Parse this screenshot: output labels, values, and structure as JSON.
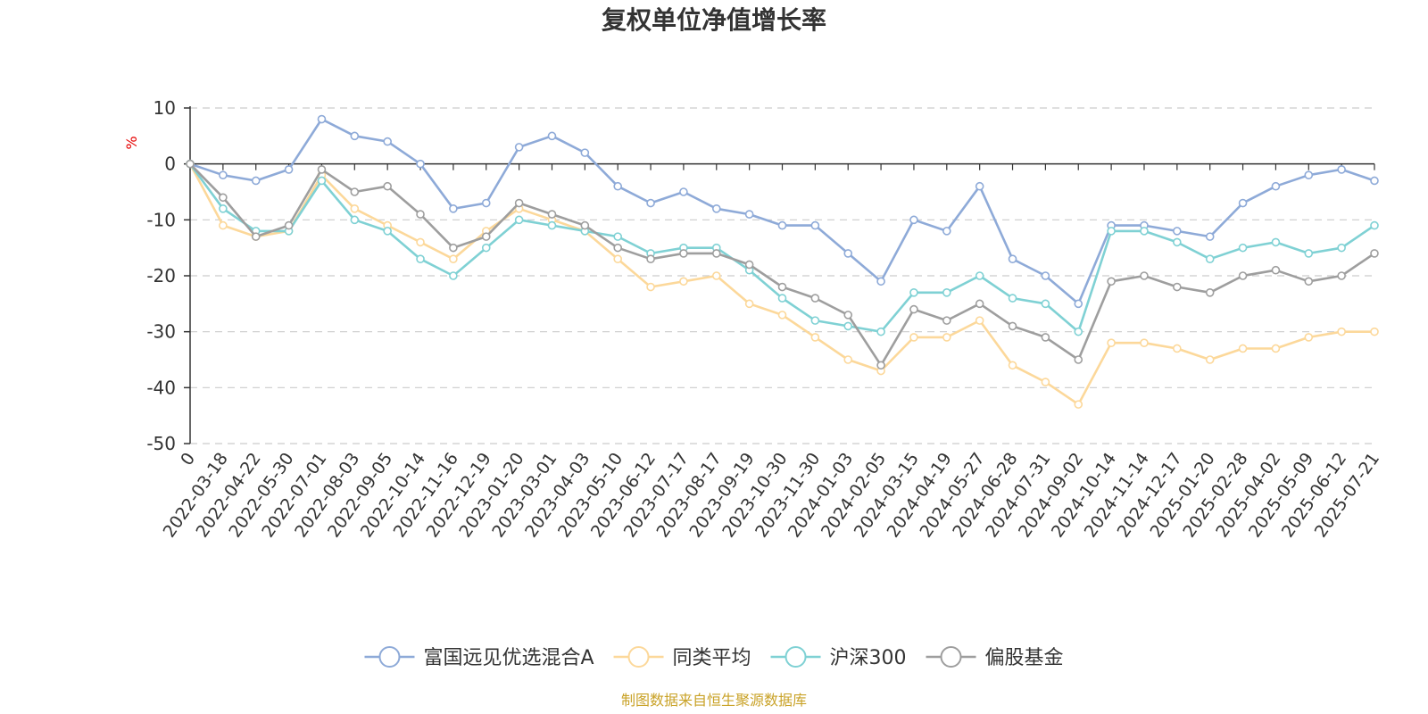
{
  "chart_data": {
    "type": "line",
    "title": "复权单位净值增长率",
    "y_unit": "%",
    "ylim": [
      -50,
      10
    ],
    "y_ticks": [
      "10",
      "0",
      "-10",
      "-20",
      "-30",
      "-40",
      "-50"
    ],
    "y_tick_values": [
      10,
      0,
      -10,
      -20,
      -30,
      -40,
      -50
    ],
    "x_labels": [
      "0",
      "2022-03-18",
      "2022-04-22",
      "2022-05-30",
      "2022-07-01",
      "2022-08-03",
      "2022-09-05",
      "2022-10-14",
      "2022-11-16",
      "2022-12-19",
      "2023-01-20",
      "2023-03-01",
      "2023-04-03",
      "2023-05-10",
      "2023-06-12",
      "2023-07-17",
      "2023-08-17",
      "2023-09-19",
      "2023-10-30",
      "2023-11-30",
      "2024-01-03",
      "2024-02-05",
      "2024-03-15",
      "2024-04-19",
      "2024-05-27",
      "2024-06-28",
      "2024-07-31",
      "2024-09-02",
      "2024-10-14",
      "2024-11-14",
      "2024-12-17",
      "2025-01-20",
      "2025-02-28",
      "2025-04-02",
      "2025-05-09",
      "2025-06-12",
      "2025-07-21"
    ],
    "grid": "dashed horizontal",
    "legend_position": "bottom",
    "series": [
      {
        "name": "富国远见优选混合A",
        "color": "#8eaad8",
        "values": [
          0,
          -2,
          -3,
          -1,
          8,
          5,
          4,
          0,
          -8,
          -7,
          3,
          5,
          2,
          -4,
          -7,
          -5,
          -8,
          -9,
          -11,
          -11,
          -16,
          -21,
          -10,
          -12,
          -4,
          -17,
          -20,
          -25,
          -11,
          -11,
          -12,
          -13,
          -7,
          -4,
          -2,
          -1,
          -3
        ]
      },
      {
        "name": "同类平均",
        "color": "#fcd89a",
        "values": [
          0,
          -11,
          -13,
          -12,
          -2,
          -8,
          -11,
          -14,
          -17,
          -12,
          -8,
          -10,
          -12,
          -17,
          -22,
          -21,
          -20,
          -25,
          -27,
          -31,
          -35,
          -37,
          -31,
          -31,
          -28,
          -36,
          -39,
          -43,
          -32,
          -32,
          -33,
          -35,
          -33,
          -33,
          -31,
          -30,
          -30
        ]
      },
      {
        "name": "沪深300",
        "color": "#7fd1d4",
        "values": [
          0,
          -8,
          -12,
          -12,
          -3,
          -10,
          -12,
          -17,
          -20,
          -15,
          -10,
          -11,
          -12,
          -13,
          -16,
          -15,
          -15,
          -19,
          -24,
          -28,
          -29,
          -30,
          -23,
          -23,
          -20,
          -24,
          -25,
          -30,
          -12,
          -12,
          -14,
          -17,
          -15,
          -14,
          -16,
          -15,
          -11
        ]
      },
      {
        "name": "偏股基金",
        "color": "#9e9e9e",
        "values": [
          0,
          -6,
          -13,
          -11,
          -1,
          -5,
          -4,
          -9,
          -15,
          -13,
          -7,
          -9,
          -11,
          -15,
          -17,
          -16,
          -16,
          -18,
          -22,
          -24,
          -27,
          -36,
          -26,
          -28,
          -25,
          -29,
          -31,
          -35,
          -21,
          -20,
          -22,
          -23,
          -20,
          -19,
          -21,
          -20,
          -16
        ]
      }
    ]
  },
  "footer": {
    "source": "制图数据来自恒生聚源数据库"
  }
}
